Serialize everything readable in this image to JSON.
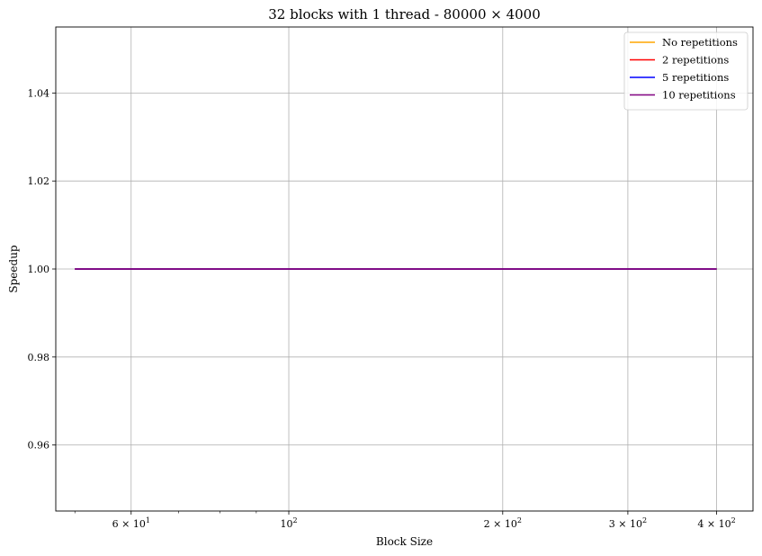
{
  "chart_data": {
    "type": "line",
    "title": "32 blocks with 1 thread - 80000 × 4000",
    "xlabel": "Block Size",
    "ylabel": "Speedup",
    "xscale": "log",
    "xlim": [
      47.0,
      450.0
    ],
    "ylim": [
      0.945,
      1.055
    ],
    "grid": true,
    "legend_position": "upper right",
    "x_ticks": [
      {
        "value": 60,
        "label": "6 × 10",
        "exp": "1"
      },
      {
        "value": 100,
        "label": "10",
        "exp": "2"
      },
      {
        "value": 200,
        "label": "2 × 10",
        "exp": "2"
      },
      {
        "value": 300,
        "label": "3 × 10",
        "exp": "2"
      },
      {
        "value": 400,
        "label": "4 × 10",
        "exp": "2"
      }
    ],
    "x_minor_ticks": [
      50,
      70,
      80,
      90
    ],
    "y_ticks": [
      {
        "value": 0.96,
        "label": "0.96"
      },
      {
        "value": 0.98,
        "label": "0.98"
      },
      {
        "value": 1.0,
        "label": "1.00"
      },
      {
        "value": 1.02,
        "label": "1.02"
      },
      {
        "value": 1.04,
        "label": "1.04"
      }
    ],
    "x": [
      50,
      400
    ],
    "series": [
      {
        "name": "No repetitions",
        "color": "#ffa500",
        "values": [
          1.0,
          1.0
        ]
      },
      {
        "name": "2 repetitions",
        "color": "#ff0000",
        "values": [
          1.0,
          1.0
        ]
      },
      {
        "name": "5 repetitions",
        "color": "#0000ff",
        "values": [
          1.0,
          1.0
        ]
      },
      {
        "name": "10 repetitions",
        "color": "#800080",
        "values": [
          1.0,
          1.0
        ]
      }
    ]
  }
}
